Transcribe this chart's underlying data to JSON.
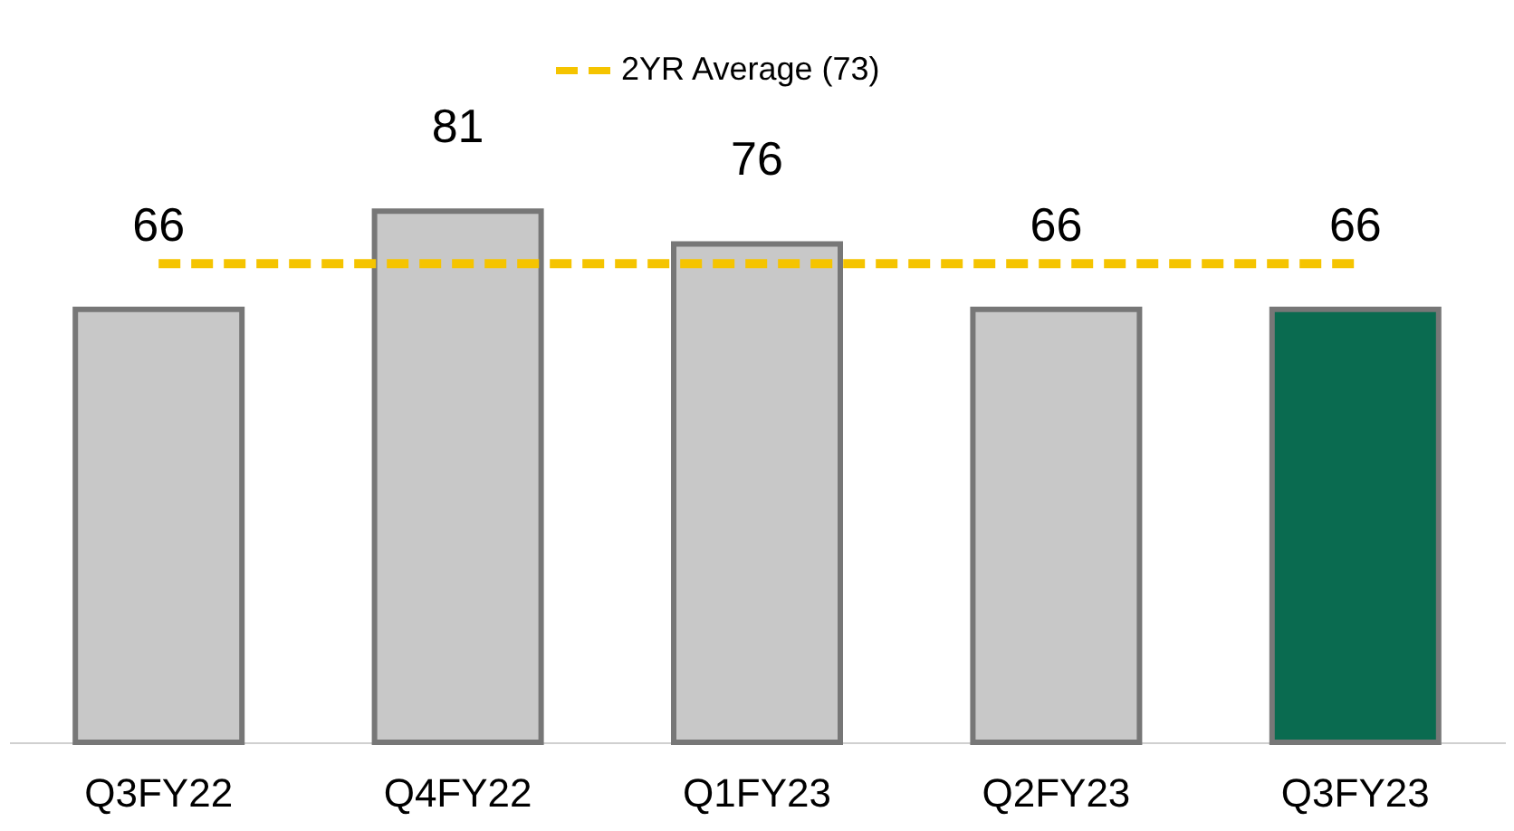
{
  "chart_data": {
    "type": "bar",
    "categories": [
      "Q3FY22",
      "Q4FY22",
      "Q1FY23",
      "Q2FY23",
      "Q3FY23"
    ],
    "series": [
      {
        "colors": [
          "#c8c8c8",
          "#c8c8c8",
          "#c8c8c8",
          "#c8c8c8",
          "#0a6b50"
        ],
        "values": [
          66,
          81,
          76,
          66,
          66
        ],
        "value_labels": [
          "66",
          "81",
          "76",
          "66",
          "66"
        ]
      },
      {
        "type": "line",
        "name": "2YR Average (73)",
        "color": "#f5c400",
        "line_style": "dashed",
        "values": [
          73,
          73,
          73,
          73,
          73
        ]
      }
    ],
    "legend": "top"
  }
}
